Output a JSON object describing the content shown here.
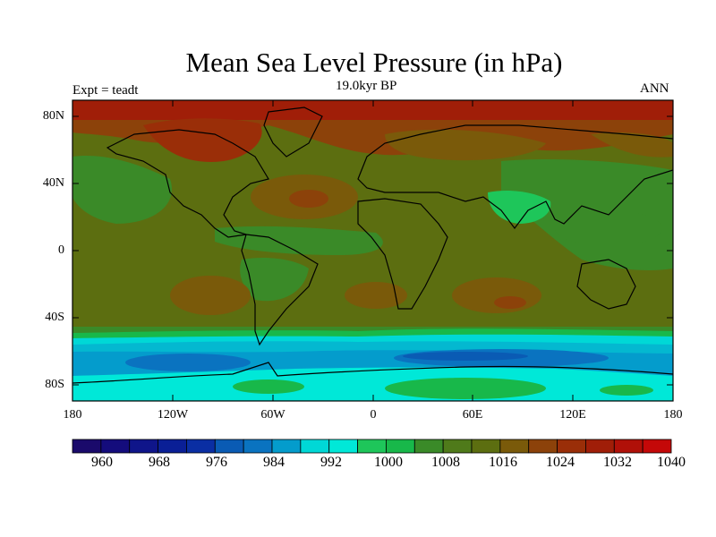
{
  "map": {
    "title": "Mean Sea Level Pressure (in hPa)",
    "subtitle": "19.0kyr BP",
    "left_label": "Expt = teadt",
    "right_label": "ANN",
    "lat_ticks": [
      "80N",
      "40N",
      "0",
      "40S",
      "80S"
    ],
    "lon_ticks": [
      "180",
      "120W",
      "60W",
      "0",
      "60E",
      "120E",
      "180"
    ]
  },
  "colorbar": {
    "levels": [
      "960",
      "968",
      "976",
      "984",
      "992",
      "1000",
      "1008",
      "1016",
      "1024",
      "1032",
      "1040"
    ],
    "colors": [
      "#1a0a6b",
      "#140c7c",
      "#0f158a",
      "#0a1f96",
      "#0a2ea3",
      "#0a5bb4",
      "#0a73c0",
      "#049ccc",
      "#00d8d6",
      "#00e8d8",
      "#1ec65a",
      "#18b84a",
      "#3a8a28",
      "#4f7a1a",
      "#5c6e10",
      "#7a5a0a",
      "#8c420a",
      "#9a2e08",
      "#a01e08",
      "#b01008",
      "#c40808"
    ]
  },
  "colors": {
    "land_outline": "#000000",
    "mid_lat_green": "#5c6e10",
    "high_pressure_red": "#b01008",
    "southern_ocean_cyan": "#00e8d8"
  }
}
